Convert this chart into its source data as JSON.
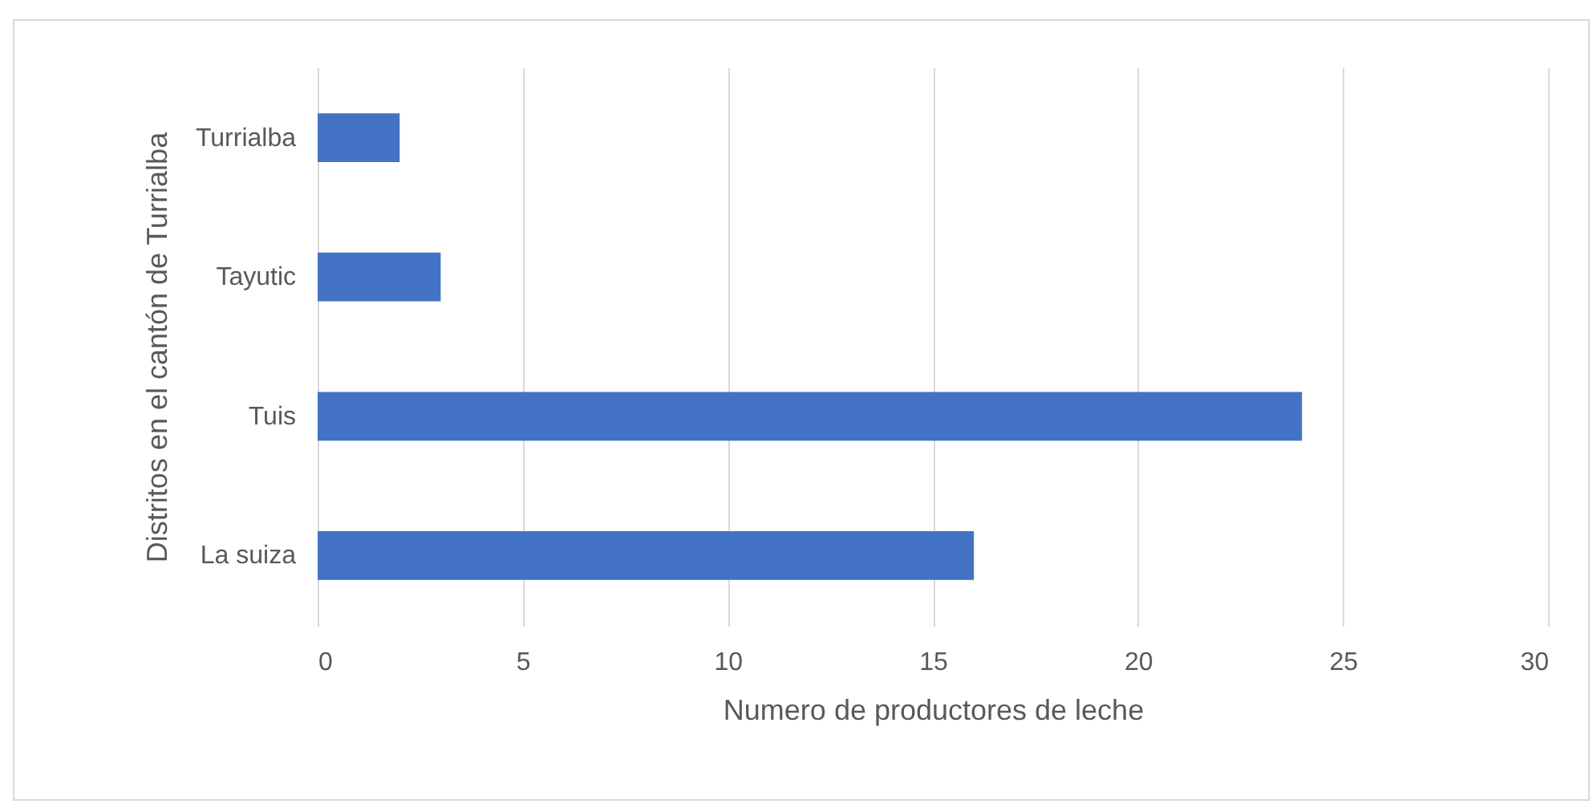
{
  "chart_data": {
    "type": "bar",
    "orientation": "horizontal",
    "categories": [
      "Turrialba",
      "Tayutic",
      "Tuis",
      "La suiza"
    ],
    "values": [
      2,
      3,
      24,
      16
    ],
    "color": "#4472c4",
    "xlim": [
      0,
      30
    ],
    "xticks": [
      0,
      5,
      10,
      15,
      20,
      25,
      30
    ],
    "grid": "x",
    "xlabel": "Numero de productores de leche",
    "ylabel": "Distritos en el cantón de Turrialba"
  }
}
